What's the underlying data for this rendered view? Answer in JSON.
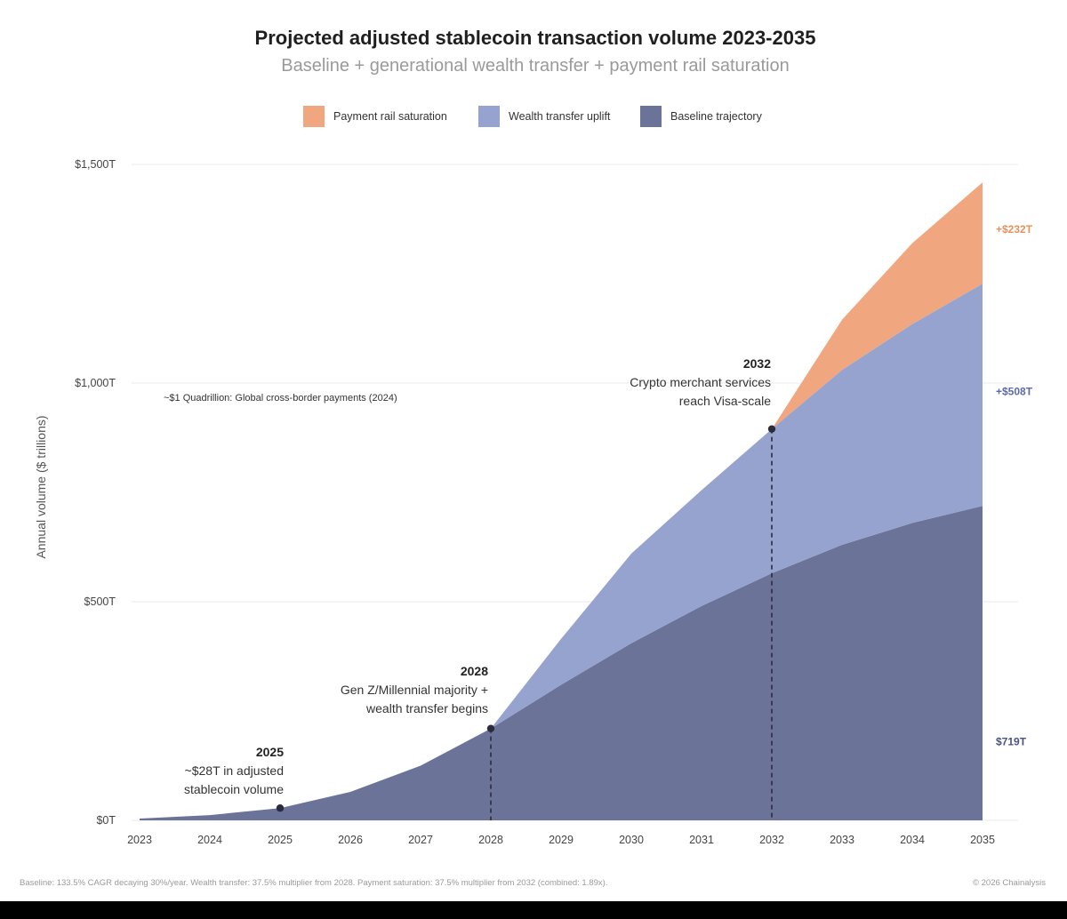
{
  "chart_data": {
    "type": "area",
    "stacked": true,
    "title": "Projected adjusted stablecoin transaction volume 2023-2035",
    "subtitle": "Baseline + generational wealth transfer + payment rail saturation",
    "ylabel": "Annual volume ($ trillions)",
    "xlabel": "",
    "x": [
      "2023",
      "2024",
      "2025",
      "2026",
      "2027",
      "2028",
      "2029",
      "2030",
      "2031",
      "2032",
      "2033",
      "2034",
      "2035"
    ],
    "ylim": [
      0,
      1500
    ],
    "y_ticks": [
      0,
      500,
      1000,
      1500
    ],
    "y_tick_labels": [
      "$0T",
      "$500T",
      "$1,000T",
      "$1,500T"
    ],
    "grid": true,
    "legend_position": "top",
    "series": [
      {
        "name": "Baseline trajectory",
        "color": "#6b7399",
        "values": [
          4,
          12,
          28,
          65,
          125,
          210,
          310,
          405,
          490,
          565,
          630,
          680,
          719
        ]
      },
      {
        "name": "Wealth transfer uplift",
        "color": "#96a3cf",
        "values": [
          0,
          0,
          0,
          0,
          0,
          0,
          105,
          205,
          265,
          330,
          400,
          455,
          508
        ]
      },
      {
        "name": "Payment rail saturation",
        "color": "#f0a67e",
        "values": [
          0,
          0,
          0,
          0,
          0,
          0,
          0,
          0,
          0,
          0,
          115,
          185,
          232
        ]
      }
    ],
    "legend_order": [
      "Payment rail saturation",
      "Wealth transfer uplift",
      "Baseline trajectory"
    ],
    "reference_line": {
      "y": 1000,
      "label": "~$1 Quadrillion: Global cross-border payments (2024)"
    },
    "annotations": [
      {
        "x": "2025",
        "y": 28,
        "year": "2025",
        "lines": [
          "~$28T in adjusted",
          "stablecoin volume"
        ],
        "dashed": false
      },
      {
        "x": "2028",
        "y": 210,
        "year": "2028",
        "lines": [
          "Gen Z/Millennial majority +",
          "wealth transfer begins"
        ],
        "dashed": true
      },
      {
        "x": "2032",
        "y": 895,
        "year": "2032",
        "lines": [
          "Crypto merchant services",
          "reach Visa-scale"
        ],
        "dashed": true
      }
    ],
    "end_labels": [
      {
        "text": "+$232T",
        "color": "#e8915f",
        "anchor_series": "Payment rail saturation"
      },
      {
        "text": "+$508T",
        "color": "#5d6aa8",
        "anchor_series": "Wealth transfer uplift"
      },
      {
        "text": "$719T",
        "color": "#4b5380",
        "anchor_series": "Baseline trajectory"
      }
    ]
  },
  "footer": {
    "note": "Baseline: 133.5% CAGR decaying 30%/year. Wealth transfer: 37.5% multiplier from 2028. Payment saturation: 37.5% multiplier from 2032 (combined: 1.89x).",
    "copyright": "© 2026 Chainalysis"
  }
}
